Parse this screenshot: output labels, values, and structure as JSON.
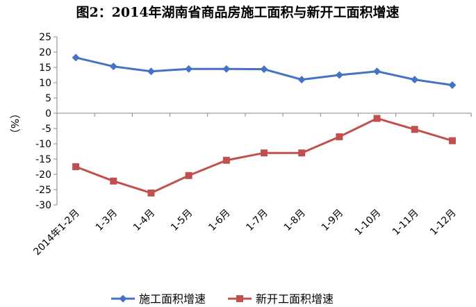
{
  "chart_data": {
    "type": "line",
    "title": "图2：2014年湖南省商品房施工面积与新开工面积增速",
    "ylabel": "（%）",
    "xlabel": "",
    "ylim": [
      -30,
      25
    ],
    "ytick_step": 5,
    "grid": false,
    "legend_position": "bottom",
    "categories": [
      "2014年1-2月",
      "1-3月",
      "1-4月",
      "1-5月",
      "1-6月",
      "1-7月",
      "1-8月",
      "1-9月",
      "1-10月",
      "1-11月",
      "1-12月"
    ],
    "series": [
      {
        "name": "施工面积增速",
        "color": "#4472C4",
        "marker": "diamond",
        "values": [
          18.2,
          15.3,
          13.7,
          14.5,
          14.5,
          14.4,
          11.0,
          12.5,
          13.7,
          11.0,
          9.2
        ]
      },
      {
        "name": "新开工面积增速",
        "color": "#C0504D",
        "marker": "square",
        "values": [
          -17.5,
          -22.2,
          -26.1,
          -20.4,
          -15.4,
          -13.0,
          -13.0,
          -7.7,
          -1.7,
          -5.3,
          -9.0
        ]
      }
    ]
  }
}
